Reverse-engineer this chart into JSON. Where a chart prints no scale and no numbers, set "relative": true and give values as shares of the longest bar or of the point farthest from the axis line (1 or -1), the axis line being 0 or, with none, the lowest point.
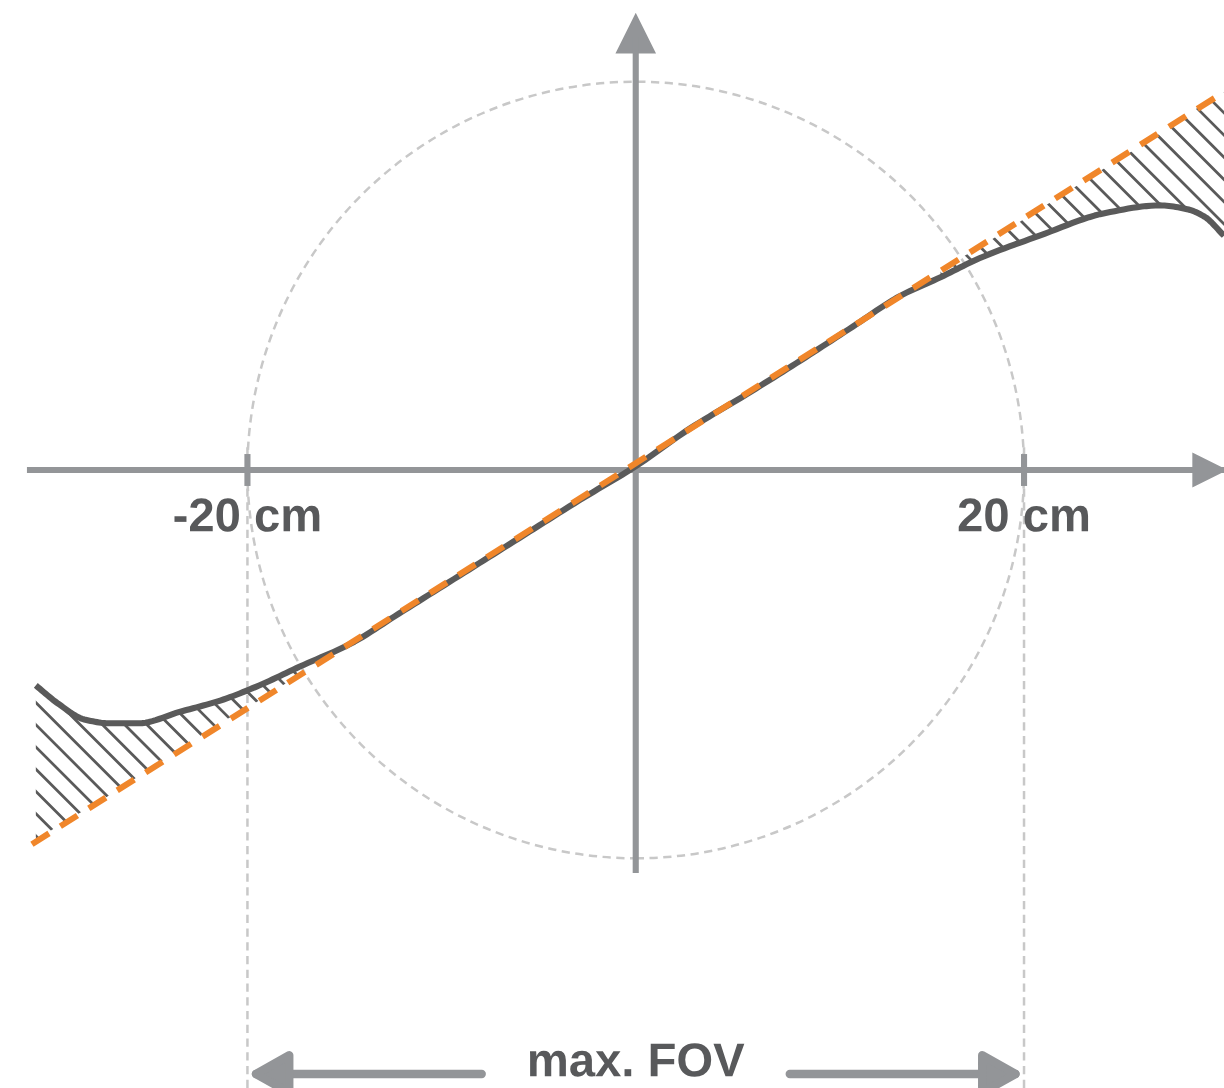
{
  "chart_data": {
    "type": "line",
    "relative": true,
    "xlim": [
      -31.2,
      30.3
    ],
    "xticks": [
      {
        "value": -20,
        "label": "-20 cm"
      },
      {
        "value": 20,
        "label": "20 cm"
      }
    ],
    "tick_labels": "x",
    "series": [
      {
        "color": "#5a5a5a",
        "line_style": "solid",
        "x": [
          -30.9,
          -29.7,
          -28.4,
          -27.1,
          -25.6,
          -23.5,
          -21.4,
          -19.4,
          -17.3,
          -14.7,
          -12.2,
          -9.1,
          -6,
          -2.9,
          0,
          2.8,
          5.7,
          8.5,
          11.2,
          13.6,
          15.7,
          17.7,
          20.8,
          24.2,
          27,
          28.4,
          29.3,
          30.3
        ],
        "values": [
          -0.57,
          -0.62,
          -0.66,
          -0.67,
          -0.67,
          -0.64,
          -0.61,
          -0.57,
          -0.52,
          -0.46,
          -0.38,
          -0.28,
          -0.18,
          -0.08,
          0.01,
          0.11,
          0.2,
          0.29,
          0.38,
          0.46,
          0.51,
          0.56,
          0.62,
          0.68,
          0.7,
          0.69,
          0.67,
          0.62
        ],
        "lower": [
          -0.98,
          -0.94,
          -0.9,
          -0.86,
          -0.81,
          -0.74,
          -0.67,
          -0.61,
          -0.54,
          null,
          null,
          null,
          null,
          null,
          null,
          null,
          null,
          null,
          null,
          null,
          0.51,
          0.56,
          0.62,
          0.68,
          0.7,
          0.69,
          0.67,
          0.62
        ],
        "upper": [
          -0.57,
          -0.62,
          -0.66,
          -0.67,
          -0.67,
          -0.64,
          -0.61,
          -0.57,
          -0.52,
          null,
          null,
          null,
          null,
          null,
          null,
          null,
          null,
          null,
          null,
          null,
          0.53,
          0.59,
          0.69,
          0.8,
          0.89,
          0.94,
          0.97,
          1.0
        ]
      },
      {
        "color": "#f0862a",
        "line_style": "dashed",
        "x": [
          -31.1,
          30.3
        ],
        "values": [
          -0.99,
          1.0
        ]
      }
    ],
    "ref_lines": [
      {
        "axis": "x",
        "value": -20,
        "color": "#c8c8c8",
        "line_style": "dashed"
      },
      {
        "axis": "x",
        "value": 20,
        "color": "#c8c8c8",
        "line_style": "dashed"
      }
    ],
    "annotations": [
      "max. FOV"
    ]
  }
}
